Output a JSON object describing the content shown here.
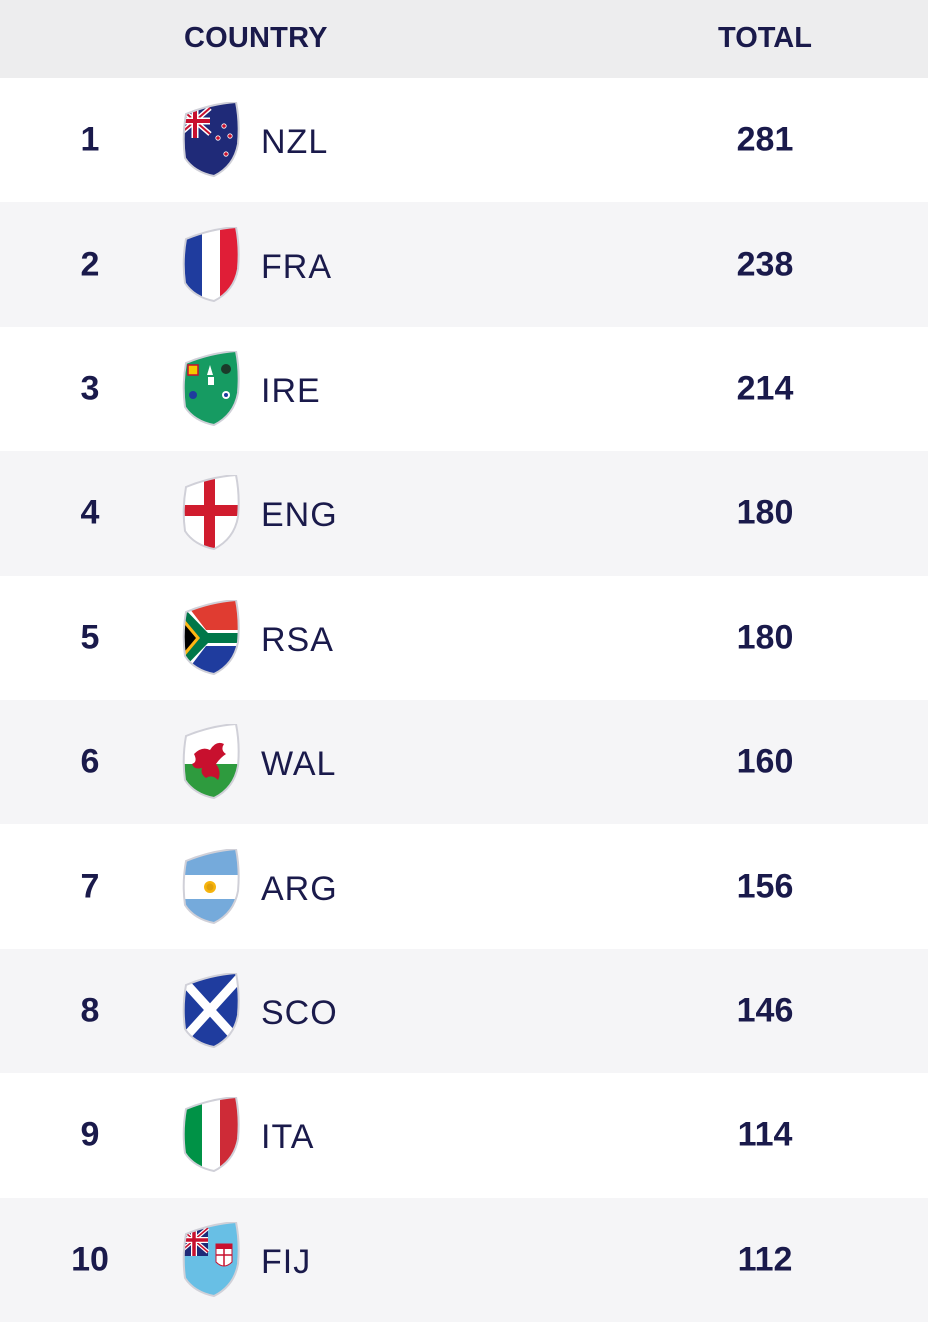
{
  "header": {
    "country_label": "COUNTRY",
    "total_label": "TOTAL"
  },
  "rows": [
    {
      "rank": "1",
      "code": "NZL",
      "total": "281",
      "flag": "new-zealand-flag-icon"
    },
    {
      "rank": "2",
      "code": "FRA",
      "total": "238",
      "flag": "france-flag-icon"
    },
    {
      "rank": "3",
      "code": "IRE",
      "total": "214",
      "flag": "ireland-flag-icon"
    },
    {
      "rank": "4",
      "code": "ENG",
      "total": "180",
      "flag": "england-flag-icon"
    },
    {
      "rank": "5",
      "code": "RSA",
      "total": "180",
      "flag": "south-africa-flag-icon"
    },
    {
      "rank": "6",
      "code": "WAL",
      "total": "160",
      "flag": "wales-flag-icon"
    },
    {
      "rank": "7",
      "code": "ARG",
      "total": "156",
      "flag": "argentina-flag-icon"
    },
    {
      "rank": "8",
      "code": "SCO",
      "total": "146",
      "flag": "scotland-flag-icon"
    },
    {
      "rank": "9",
      "code": "ITA",
      "total": "114",
      "flag": "italy-flag-icon"
    },
    {
      "rank": "10",
      "code": "FIJ",
      "total": "112",
      "flag": "fiji-flag-icon"
    }
  ]
}
